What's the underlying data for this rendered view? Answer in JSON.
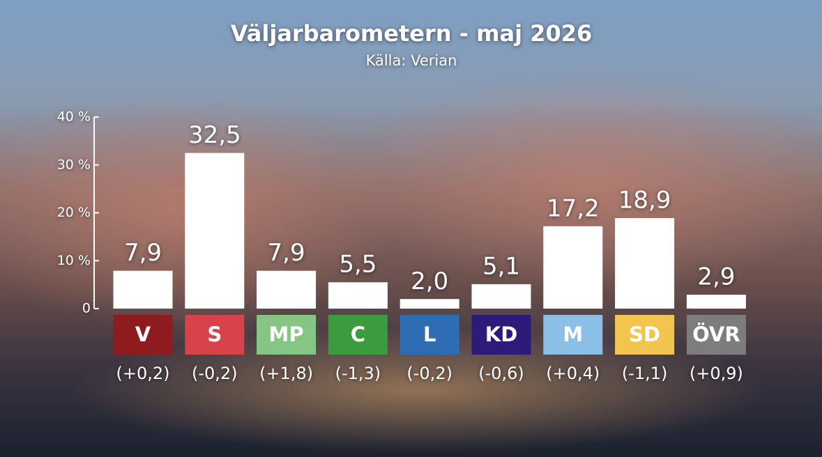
{
  "chart_data": {
    "type": "bar",
    "title": "Väljarbarometern - maj 2026",
    "subtitle": "Källa: Verian",
    "categories": [
      "V",
      "S",
      "MP",
      "C",
      "L",
      "KD",
      "M",
      "SD",
      "ÖVR"
    ],
    "values": [
      7.9,
      32.5,
      7.9,
      5.5,
      2.0,
      5.1,
      17.2,
      18.9,
      2.9
    ],
    "value_labels": [
      "7,9",
      "32,5",
      "7,9",
      "5,5",
      "2,0",
      "5,1",
      "17,2",
      "18,9",
      "2,9"
    ],
    "change_labels": [
      "(+0,2)",
      "(-0,2)",
      "(+1,8)",
      "(-1,3)",
      "(-0,2)",
      "(-0,6)",
      "(+0,4)",
      "(-1,1)",
      "(+0,9)"
    ],
    "category_colors": [
      "#8e1c1f",
      "#d8434b",
      "#86c583",
      "#3d9b3f",
      "#2e6cb3",
      "#2c1b78",
      "#8bbfe6",
      "#f2c64e",
      "#7d7d7d"
    ],
    "color": "#ffffff",
    "ylim": [
      0,
      40
    ],
    "yticks": [
      0,
      {
        "value": 10,
        "label": "10 %"
      },
      {
        "value": 20,
        "label": "20 %"
      },
      {
        "value": 30,
        "label": "30 %"
      },
      {
        "value": 40,
        "label": "40 %"
      }
    ]
  }
}
